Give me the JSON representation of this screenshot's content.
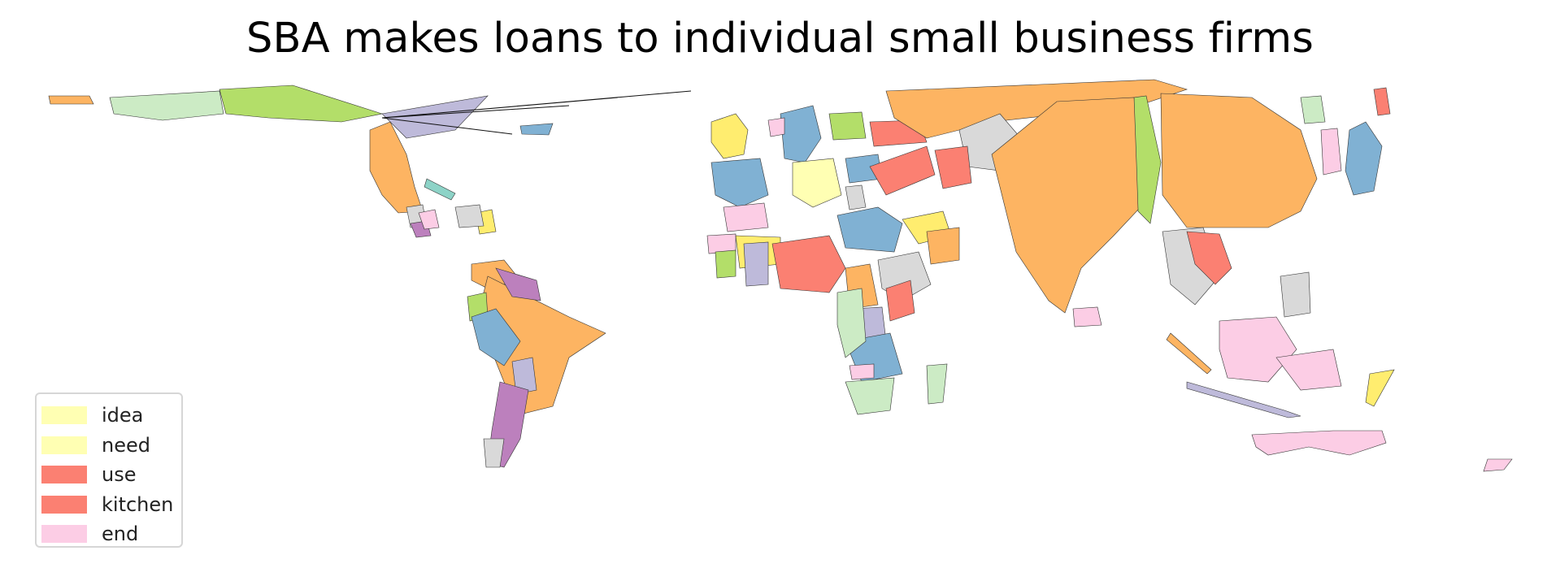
{
  "title": "SBA makes loans to individual small business firms",
  "legend": {
    "items": [
      {
        "label": "idea",
        "color": "#ffffb3"
      },
      {
        "label": "need",
        "color": "#ffffb3"
      },
      {
        "label": "use",
        "color": "#fb8072"
      },
      {
        "label": "kitchen",
        "color": "#fb8072"
      },
      {
        "label": "end",
        "color": "#fccde5"
      }
    ]
  },
  "palette": {
    "orange": "#fdb462",
    "green": "#b3de69",
    "light_green": "#ccebc5",
    "blue": "#80b1d3",
    "red": "#fb8072",
    "yellow": "#ffed6f",
    "pale_yellow": "#ffffb3",
    "pink": "#fccde5",
    "gray": "#d9d9d9",
    "lavender": "#bebada",
    "purple": "#bc80bd",
    "teal": "#8dd3c7"
  }
}
